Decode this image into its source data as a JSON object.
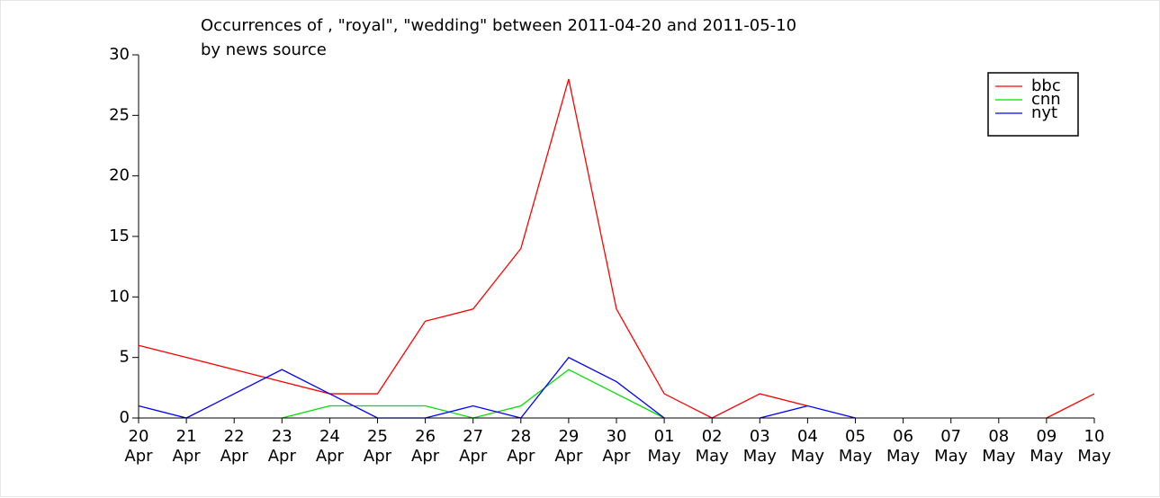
{
  "chart_data": {
    "type": "line",
    "title": "Occurrences of , \"royal\", \"wedding\" between 2011-04-20 and 2011-05-10",
    "subtitle": "by news source",
    "categories": [
      "20\nApr",
      "21\nApr",
      "22\nApr",
      "23\nApr",
      "24\nApr",
      "25\nApr",
      "26\nApr",
      "27\nApr",
      "28\nApr",
      "29\nApr",
      "30\nApr",
      "01\nMay",
      "02\nMay",
      "03\nMay",
      "04\nMay",
      "05\nMay",
      "06\nMay",
      "07\nMay",
      "08\nMay",
      "09\nMay",
      "10\nMay"
    ],
    "series": [
      {
        "name": "bbc",
        "color": "#ff0000",
        "values": [
          6,
          5,
          4,
          3,
          2,
          2,
          8,
          9,
          14,
          28,
          9,
          2,
          0,
          2,
          1,
          null,
          null,
          null,
          null,
          0,
          2
        ]
      },
      {
        "name": "cnn",
        "color": "#00e000",
        "values": [
          null,
          null,
          null,
          0,
          1,
          1,
          1,
          0,
          1,
          4,
          2,
          0,
          null,
          null,
          null,
          null,
          null,
          null,
          null,
          null,
          null
        ]
      },
      {
        "name": "nyt",
        "color": "#0000ff",
        "values": [
          1,
          0,
          2,
          4,
          2,
          0,
          0,
          1,
          0,
          5,
          3,
          0,
          null,
          0,
          1,
          0,
          null,
          null,
          null,
          null,
          null
        ]
      }
    ],
    "ylim": [
      0,
      30
    ],
    "yticks": [
      0,
      5,
      10,
      15,
      20,
      25,
      30
    ],
    "legend": "upper right"
  }
}
